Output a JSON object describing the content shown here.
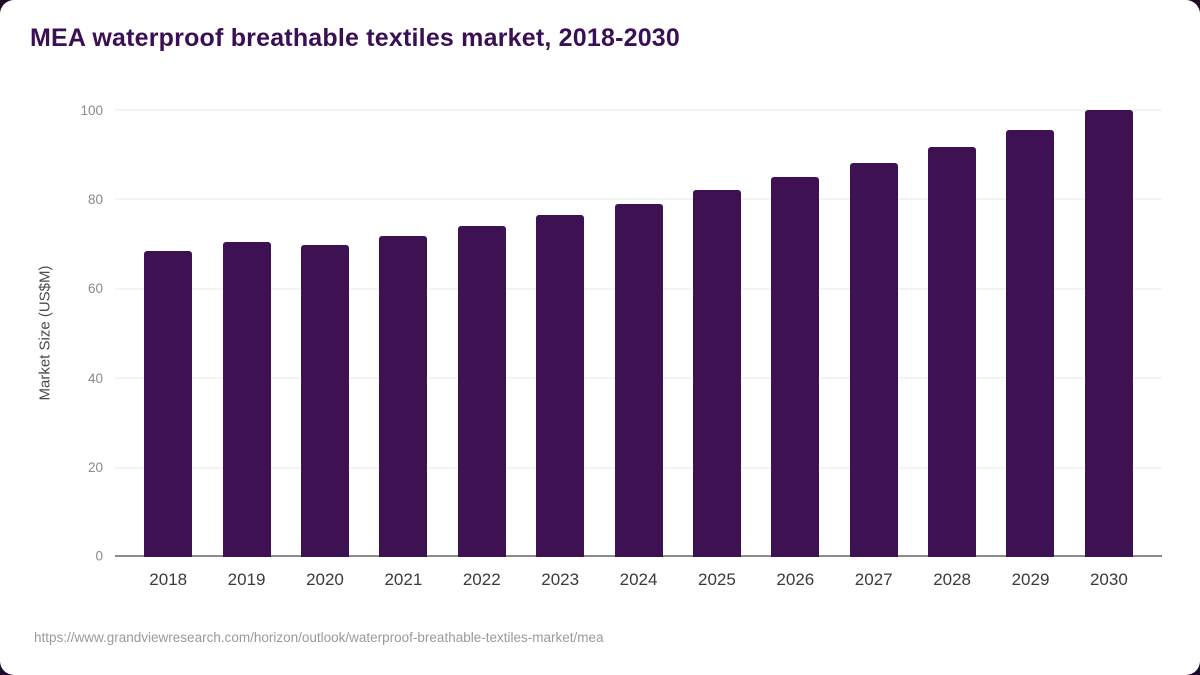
{
  "chart_data": {
    "type": "bar",
    "title": "MEA waterproof breathable textiles market, 2018-2030",
    "xlabel": "",
    "ylabel": "Market Size (US$M)",
    "categories": [
      "2018",
      "2019",
      "2020",
      "2021",
      "2022",
      "2023",
      "2024",
      "2025",
      "2026",
      "2027",
      "2028",
      "2029",
      "2030"
    ],
    "values": [
      68.5,
      70.5,
      69.8,
      71.8,
      74,
      76.5,
      79,
      82,
      85,
      88.2,
      91.8,
      95.5,
      100
    ],
    "ylim": [
      0,
      100
    ],
    "yticks": [
      0,
      20,
      40,
      60,
      80,
      100
    ],
    "grid": true,
    "legend": "none",
    "bar_color": "#3e1152"
  },
  "footer": {
    "url": "https://www.grandviewresearch.com/horizon/outlook/waterproof-breathable-textiles-market/mea"
  },
  "colors": {
    "title": "#3b0f54",
    "bar": "#3e1152",
    "grid": "#e9e9e9",
    "axis": "#8c8c8c",
    "tick_label": "#8a8a8a",
    "x_label": "#3a3a3a",
    "footer": "#9a9a9a"
  }
}
